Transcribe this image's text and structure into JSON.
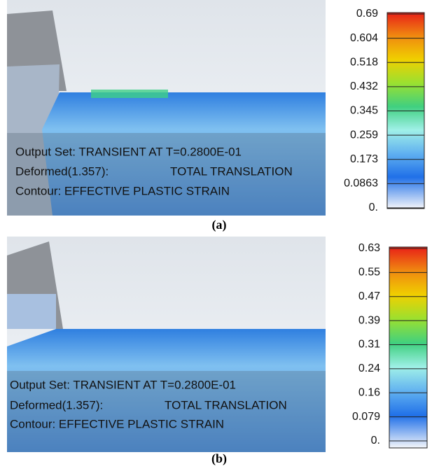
{
  "panels": [
    {
      "legend": [
        "0.69",
        "0.604",
        "0.518",
        "0.432",
        "0.345",
        "0.259",
        "0.173",
        "0.0863",
        "0."
      ],
      "output_set": "Output Set: TRANSIENT AT T=0.2800E-01",
      "deformed": "Deformed(1.357):",
      "translation": "TOTAL TRANSLATION",
      "contour": "Contour: EFFECTIVE PLASTIC STRAIN",
      "caption": "(a)"
    },
    {
      "legend": [
        "0.63",
        "0.55",
        "0.47",
        "0.39",
        "0.31",
        "0.24",
        "0.16",
        "0.079",
        "0."
      ],
      "output_set": "Output Set: TRANSIENT AT T=0.2800E-01",
      "deformed": "Deformed(1.357):",
      "translation": "TOTAL TRANSLATION",
      "contour": "Contour: EFFECTIVE PLASTIC STRAIN",
      "caption": "(b)"
    }
  ]
}
